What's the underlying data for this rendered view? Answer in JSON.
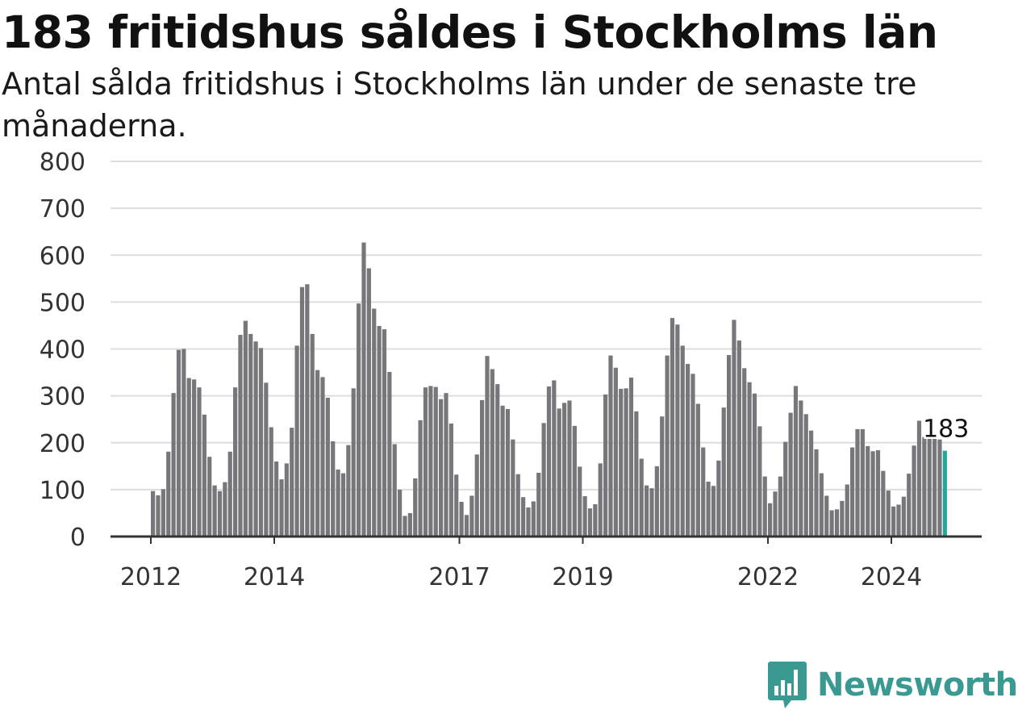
{
  "colors": {
    "bar": "#77767b",
    "highlight": "#27a79b",
    "grid": "#dddddd",
    "axis": "#333333",
    "brand": "#3a9a92"
  },
  "brand": {
    "logo_icon": "bar-chart-speech-bubble-icon",
    "name": "Newsworthy"
  },
  "chart_data": {
    "type": "bar",
    "title": "183 fritidshus såldes i Stockholms län",
    "subtitle": "Antal sålda fritidshus i Stockholms län under de senaste tre månaderna.",
    "xlabel": "",
    "ylabel": "",
    "ylim": [
      0,
      800
    ],
    "yticks": [
      0,
      100,
      200,
      300,
      400,
      500,
      600,
      700,
      800
    ],
    "x_tick_labels": [
      "2012",
      "2014",
      "2017",
      "2019",
      "2022",
      "2024"
    ],
    "grid": true,
    "legend": "none",
    "start": "2012-01",
    "annotation": {
      "label": "183",
      "target": "last"
    },
    "values": [
      97,
      88,
      101,
      181,
      306,
      398,
      400,
      338,
      335,
      318,
      260,
      170,
      109,
      97,
      116,
      181,
      318,
      430,
      460,
      432,
      416,
      402,
      328,
      233,
      160,
      122,
      156,
      232,
      407,
      532,
      538,
      432,
      355,
      340,
      296,
      203,
      143,
      135,
      195,
      316,
      497,
      627,
      572,
      486,
      449,
      442,
      351,
      197,
      100,
      44,
      50,
      124,
      248,
      318,
      321,
      319,
      293,
      306,
      241,
      132,
      74,
      46,
      87,
      175,
      291,
      385,
      357,
      325,
      279,
      272,
      207,
      133,
      84,
      62,
      75,
      136,
      242,
      320,
      333,
      273,
      285,
      290,
      236,
      149,
      86,
      60,
      69,
      156,
      303,
      386,
      360,
      315,
      316,
      339,
      267,
      166,
      109,
      103,
      150,
      256,
      386,
      466,
      452,
      407,
      368,
      347,
      283,
      190,
      117,
      108,
      162,
      275,
      387,
      462,
      418,
      359,
      329,
      305,
      235,
      128,
      71,
      96,
      128,
      202,
      264,
      321,
      290,
      261,
      226,
      186,
      135,
      87,
      56,
      58,
      76,
      111,
      190,
      229,
      229,
      193,
      182,
      184,
      140,
      98,
      64,
      68,
      85,
      134,
      194,
      247,
      212,
      209,
      216,
      207,
      183
    ]
  }
}
